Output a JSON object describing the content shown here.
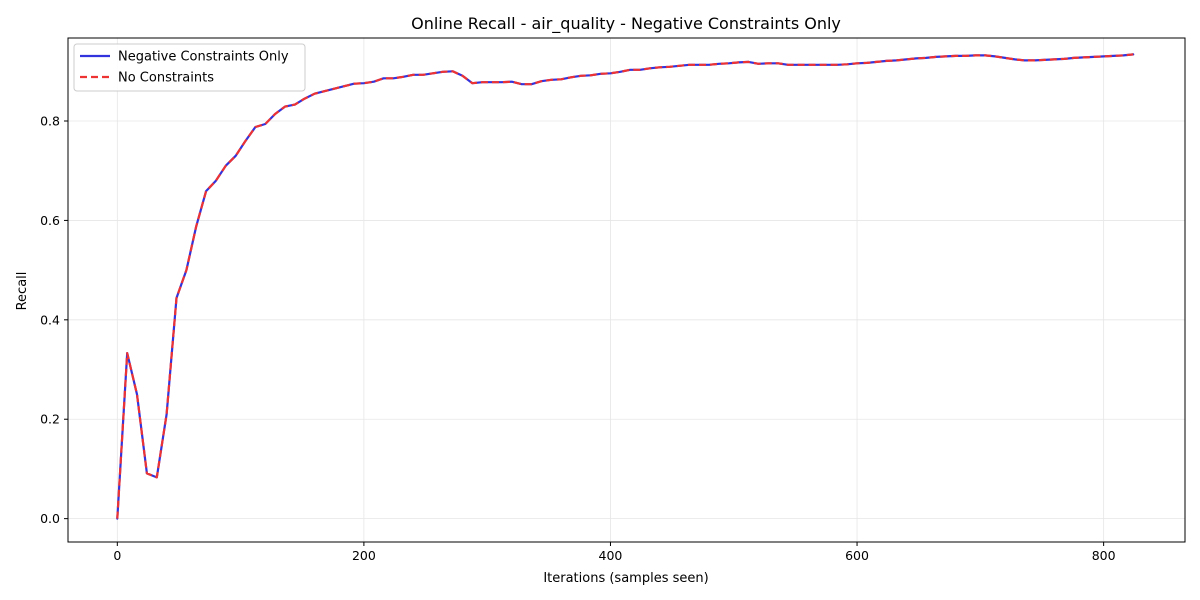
{
  "chart_data": {
    "type": "line",
    "title": "Online Recall - air_quality - Negative Constraints Only",
    "xlabel": "Iterations (samples seen)",
    "ylabel": "Recall",
    "xlim": [
      -40,
      866
    ],
    "ylim": [
      -0.047,
      0.967
    ],
    "xticks": [
      0,
      200,
      400,
      600,
      800
    ],
    "yticks": [
      0.0,
      0.2,
      0.4,
      0.6,
      0.8
    ],
    "xtick_labels": [
      "0",
      "200",
      "400",
      "600",
      "800"
    ],
    "ytick_labels": [
      "0.0",
      "0.2",
      "0.4",
      "0.6",
      "0.8"
    ],
    "grid": true,
    "legend_position": "top-left",
    "x": [
      0,
      8,
      16,
      24,
      32,
      40,
      48,
      56,
      64,
      72,
      80,
      88,
      96,
      104,
      112,
      120,
      128,
      136,
      144,
      152,
      160,
      168,
      176,
      184,
      192,
      200,
      208,
      216,
      224,
      232,
      240,
      248,
      256,
      264,
      272,
      280,
      288,
      296,
      304,
      312,
      320,
      328,
      336,
      344,
      352,
      360,
      368,
      376,
      384,
      392,
      400,
      408,
      416,
      424,
      432,
      440,
      448,
      456,
      464,
      472,
      480,
      488,
      496,
      504,
      512,
      520,
      528,
      536,
      544,
      552,
      560,
      568,
      576,
      584,
      592,
      600,
      608,
      616,
      624,
      632,
      640,
      648,
      656,
      664,
      672,
      680,
      688,
      696,
      704,
      712,
      720,
      728,
      736,
      744,
      752,
      760,
      768,
      776,
      784,
      792,
      800,
      808,
      816,
      824
    ],
    "series": [
      {
        "name": "Negative Constraints Only",
        "color": "#3333dd",
        "style": "solid",
        "values": [
          0.0,
          0.333,
          0.25,
          0.091,
          0.083,
          0.21,
          0.444,
          0.5,
          0.588,
          0.659,
          0.68,
          0.71,
          0.73,
          0.76,
          0.788,
          0.794,
          0.814,
          0.829,
          0.833,
          0.845,
          0.855,
          0.86,
          0.865,
          0.87,
          0.875,
          0.876,
          0.879,
          0.886,
          0.886,
          0.889,
          0.893,
          0.893,
          0.896,
          0.899,
          0.9,
          0.891,
          0.876,
          0.878,
          0.878,
          0.878,
          0.879,
          0.874,
          0.874,
          0.88,
          0.883,
          0.884,
          0.888,
          0.891,
          0.892,
          0.895,
          0.896,
          0.899,
          0.903,
          0.903,
          0.906,
          0.908,
          0.909,
          0.911,
          0.913,
          0.913,
          0.913,
          0.915,
          0.916,
          0.918,
          0.919,
          0.915,
          0.916,
          0.916,
          0.913,
          0.913,
          0.913,
          0.913,
          0.913,
          0.913,
          0.914,
          0.916,
          0.917,
          0.919,
          0.921,
          0.922,
          0.924,
          0.926,
          0.927,
          0.929,
          0.93,
          0.931,
          0.931,
          0.932,
          0.932,
          0.93,
          0.927,
          0.924,
          0.922,
          0.922,
          0.923,
          0.924,
          0.925,
          0.927,
          0.928,
          0.929,
          0.93,
          0.931,
          0.932,
          0.934
        ]
      },
      {
        "name": "No Constraints",
        "color": "#ee3333",
        "style": "dashed",
        "values": [
          0.0,
          0.333,
          0.25,
          0.091,
          0.083,
          0.21,
          0.444,
          0.5,
          0.588,
          0.659,
          0.68,
          0.71,
          0.73,
          0.76,
          0.788,
          0.794,
          0.814,
          0.829,
          0.833,
          0.845,
          0.855,
          0.86,
          0.865,
          0.87,
          0.875,
          0.876,
          0.879,
          0.886,
          0.886,
          0.889,
          0.893,
          0.893,
          0.896,
          0.899,
          0.9,
          0.891,
          0.876,
          0.878,
          0.878,
          0.878,
          0.879,
          0.874,
          0.874,
          0.88,
          0.883,
          0.884,
          0.888,
          0.891,
          0.892,
          0.895,
          0.896,
          0.899,
          0.903,
          0.903,
          0.906,
          0.908,
          0.909,
          0.911,
          0.913,
          0.913,
          0.913,
          0.915,
          0.916,
          0.918,
          0.919,
          0.915,
          0.916,
          0.916,
          0.913,
          0.913,
          0.913,
          0.913,
          0.913,
          0.913,
          0.914,
          0.916,
          0.917,
          0.919,
          0.921,
          0.922,
          0.924,
          0.926,
          0.927,
          0.929,
          0.93,
          0.931,
          0.931,
          0.932,
          0.932,
          0.93,
          0.927,
          0.924,
          0.922,
          0.922,
          0.923,
          0.924,
          0.925,
          0.927,
          0.928,
          0.929,
          0.93,
          0.931,
          0.932,
          0.934
        ]
      }
    ]
  }
}
